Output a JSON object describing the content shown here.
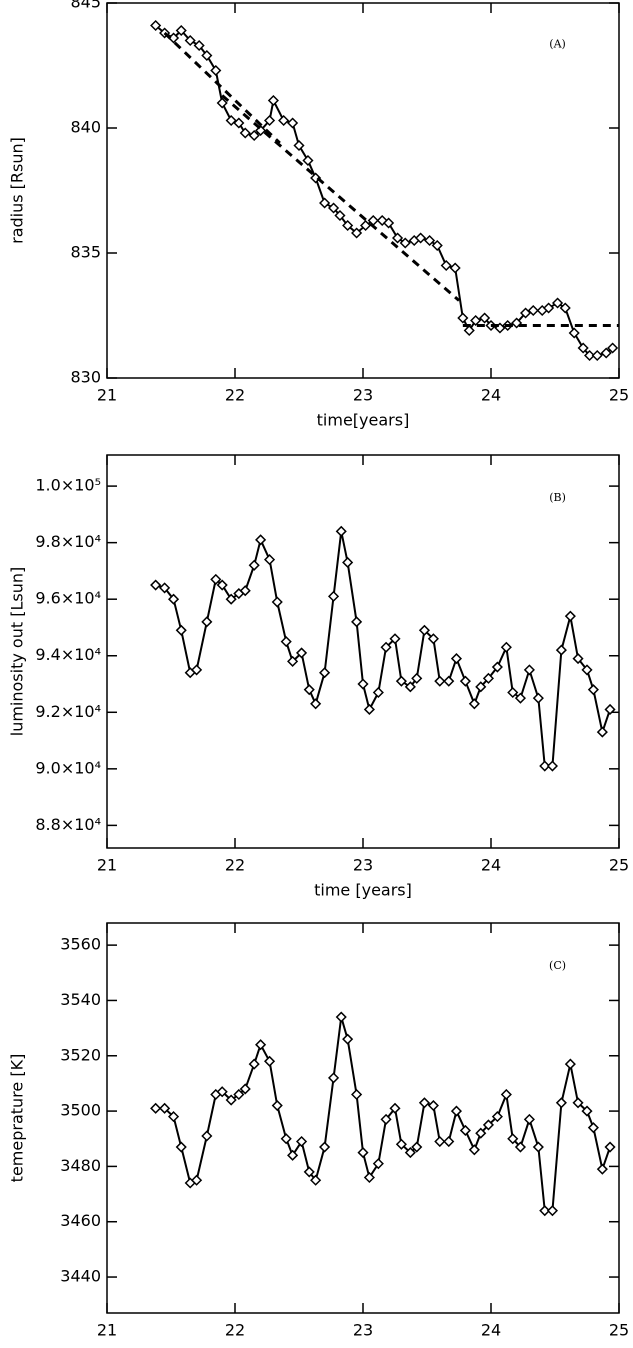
{
  "chart_data": [
    {
      "type": "line",
      "annotation": "(A)",
      "xlabel": "time[years]",
      "ylabel": "radius [Rsun]",
      "xlim": [
        21,
        25
      ],
      "xticks": [
        21,
        22,
        23,
        24,
        25
      ],
      "ylim": [
        830,
        845
      ],
      "yticks": [
        830,
        835,
        840,
        845
      ],
      "series": [
        {
          "color": "#000000",
          "marker": "diamond",
          "x": [
            21.38,
            21.45,
            21.52,
            21.58,
            21.65,
            21.72,
            21.78,
            21.85,
            21.9,
            21.97,
            22.03,
            22.08,
            22.15,
            22.2,
            22.27,
            22.3,
            22.38,
            22.45,
            22.5,
            22.57,
            22.63,
            22.7,
            22.77,
            22.82,
            22.88,
            22.95,
            23.02,
            23.08,
            23.15,
            23.2,
            23.27,
            23.33,
            23.4,
            23.45,
            23.52,
            23.58,
            23.65,
            23.72,
            23.78,
            23.83,
            23.88,
            23.95,
            24.0,
            24.07,
            24.13,
            24.2,
            24.27,
            24.33,
            24.4,
            24.45,
            24.52,
            24.58,
            24.65,
            24.72,
            24.77,
            24.83,
            24.9,
            24.95
          ],
          "values": [
            844.1,
            843.8,
            843.6,
            843.9,
            843.5,
            843.3,
            842.9,
            842.3,
            841.0,
            840.3,
            840.2,
            839.8,
            839.7,
            839.9,
            840.3,
            841.1,
            840.3,
            840.2,
            839.3,
            838.7,
            838.0,
            837.0,
            836.8,
            836.5,
            836.1,
            835.8,
            836.1,
            836.3,
            836.3,
            836.2,
            835.6,
            835.4,
            835.5,
            835.6,
            835.5,
            835.3,
            834.5,
            834.4,
            832.4,
            831.9,
            832.3,
            832.4,
            832.1,
            832.0,
            832.1,
            832.2,
            832.6,
            832.7,
            832.7,
            832.8,
            833.0,
            832.8,
            831.8,
            831.2,
            830.9,
            830.9,
            831.0,
            831.2
          ]
        },
        {
          "color": "#000000",
          "linestyle": "dashed",
          "x": [
            21.45,
            22.35
          ],
          "values": [
            843.8,
            839.4
          ]
        },
        {
          "color": "#000000",
          "linestyle": "dashed",
          "x": [
            21.9,
            23.75
          ],
          "values": [
            841.3,
            833.1
          ]
        },
        {
          "color": "#000000",
          "linestyle": "dashed",
          "x": [
            23.78,
            25.0
          ],
          "values": [
            832.1,
            832.1
          ]
        }
      ]
    },
    {
      "type": "line",
      "annotation": "(B)",
      "xlabel": "time [years]",
      "ylabel": "luminosity out [Lsun]",
      "xlim": [
        21,
        25
      ],
      "xticks": [
        21,
        22,
        23,
        24,
        25
      ],
      "ylim": [
        87200,
        101100
      ],
      "yticks": [
        {
          "value": 88000,
          "label": "8.8×10⁴"
        },
        {
          "value": 90000,
          "label": "9.0×10⁴"
        },
        {
          "value": 92000,
          "label": "9.2×10⁴"
        },
        {
          "value": 94000,
          "label": "9.4×10⁴"
        },
        {
          "value": 96000,
          "label": "9.6×10⁴"
        },
        {
          "value": 98000,
          "label": "9.8×10⁴"
        },
        {
          "value": 100000,
          "label": "1.0×10⁵"
        }
      ],
      "series": [
        {
          "color": "#000000",
          "marker": "diamond",
          "x": [
            21.38,
            21.45,
            21.52,
            21.58,
            21.65,
            21.7,
            21.78,
            21.85,
            21.9,
            21.97,
            22.03,
            22.08,
            22.15,
            22.2,
            22.27,
            22.33,
            22.4,
            22.45,
            22.52,
            22.58,
            22.63,
            22.7,
            22.77,
            22.83,
            22.88,
            22.95,
            23.0,
            23.05,
            23.12,
            23.18,
            23.25,
            23.3,
            23.37,
            23.42,
            23.48,
            23.55,
            23.6,
            23.67,
            23.73,
            23.8,
            23.87,
            23.92,
            23.98,
            24.05,
            24.12,
            24.17,
            24.23,
            24.3,
            24.37,
            24.42,
            24.48,
            24.55,
            24.62,
            24.68,
            24.75,
            24.8,
            24.87,
            24.93
          ],
          "values": [
            96500,
            96400,
            96000,
            94900,
            93400,
            93500,
            95200,
            96700,
            96500,
            96000,
            96200,
            96300,
            97200,
            98100,
            97400,
            95900,
            94500,
            93800,
            94100,
            92800,
            92300,
            93400,
            96100,
            98400,
            97300,
            95200,
            93000,
            92100,
            92700,
            94300,
            94600,
            93100,
            92900,
            93200,
            94900,
            94600,
            93100,
            93100,
            93900,
            93100,
            92300,
            92900,
            93200,
            93600,
            94300,
            92700,
            92500,
            93500,
            92500,
            90100,
            90100,
            94200,
            95400,
            93900,
            93500,
            92800,
            91300,
            92100
          ]
        }
      ]
    },
    {
      "type": "line",
      "annotation": "(C)",
      "xlabel": "time [years]",
      "ylabel": "temeprature [K]",
      "xlim": [
        21,
        25
      ],
      "xticks": [
        21,
        22,
        23,
        24,
        25
      ],
      "ylim": [
        3427,
        3568
      ],
      "yticks": [
        3440,
        3460,
        3480,
        3500,
        3520,
        3540,
        3560
      ],
      "series": [
        {
          "color": "#000000",
          "marker": "diamond",
          "x": [
            21.38,
            21.45,
            21.52,
            21.58,
            21.65,
            21.7,
            21.78,
            21.85,
            21.9,
            21.97,
            22.03,
            22.08,
            22.15,
            22.2,
            22.27,
            22.33,
            22.4,
            22.45,
            22.52,
            22.58,
            22.63,
            22.7,
            22.77,
            22.83,
            22.88,
            22.95,
            23.0,
            23.05,
            23.12,
            23.18,
            23.25,
            23.3,
            23.37,
            23.42,
            23.48,
            23.55,
            23.6,
            23.67,
            23.73,
            23.8,
            23.87,
            23.92,
            23.98,
            24.05,
            24.12,
            24.17,
            24.23,
            24.3,
            24.37,
            24.42,
            24.48,
            24.55,
            24.62,
            24.68,
            24.75,
            24.8,
            24.87,
            24.93
          ],
          "values": [
            3501,
            3501,
            3498,
            3487,
            3474,
            3475,
            3491,
            3506,
            3507,
            3504,
            3506,
            3508,
            3517,
            3524,
            3518,
            3502,
            3490,
            3484,
            3489,
            3478,
            3475,
            3487,
            3512,
            3534,
            3526,
            3506,
            3485,
            3476,
            3481,
            3497,
            3501,
            3488,
            3485,
            3487,
            3503,
            3502,
            3489,
            3489,
            3500,
            3493,
            3486,
            3492,
            3495,
            3498,
            3506,
            3490,
            3487,
            3497,
            3487,
            3464,
            3464,
            3503,
            3517,
            3503,
            3500,
            3494,
            3479,
            3487
          ]
        }
      ]
    }
  ]
}
